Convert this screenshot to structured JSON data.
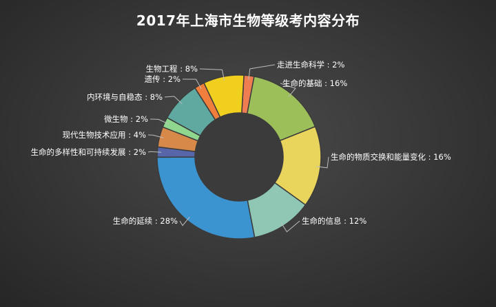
{
  "chart_data": {
    "type": "pie",
    "variant": "donut",
    "title": "2017年上海市生物等级考内容分布",
    "legend": "none",
    "slices": [
      {
        "label": "走进生命科学",
        "value": 2,
        "color": "#ef7d52"
      },
      {
        "label": "生命的基础",
        "value": 16,
        "color": "#9dbf5a"
      },
      {
        "label": "生命的物质交换和能量变化",
        "value": 16,
        "color": "#e9d45c"
      },
      {
        "label": "生命的信息",
        "value": 12,
        "color": "#8fc7b4"
      },
      {
        "label": "生命的延续",
        "value": 28,
        "color": "#3b93cf"
      },
      {
        "label": "生命的多样性和可持续发展",
        "value": 2,
        "color": "#5666a8"
      },
      {
        "label": "现代生物技术应用",
        "value": 4,
        "color": "#d7894a"
      },
      {
        "label": "微生物",
        "value": 2,
        "color": "#8fd68f"
      },
      {
        "label": "内环境与自稳态",
        "value": 8,
        "color": "#5fa9a0"
      },
      {
        "label": "遗传",
        "value": 2,
        "color": "#f07e3c"
      },
      {
        "label": "生物工程",
        "value": 8,
        "color": "#f1cf1e"
      }
    ]
  }
}
